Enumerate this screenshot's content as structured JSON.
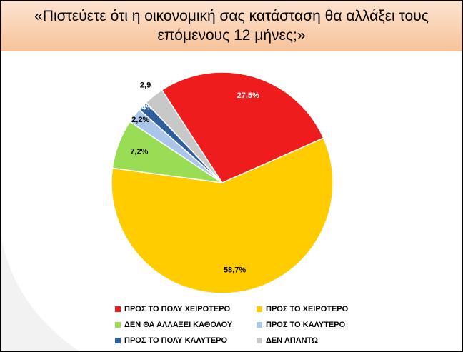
{
  "chart_data": {
    "type": "pie",
    "title": "«Πιστεύετε ότι η οικονομική σας κατάσταση θα αλλάξει τους επόμενους 12 μήνες;»",
    "categories": [
      "ΠΡΟΣ ΤΟ ΠΟΛΥ ΧΕΙΡΟΤΕΡΟ",
      "ΠΡΟΣ ΤΟ ΧΕΙΡΟΤΕΡΟ",
      "ΔΕΝ ΘΑ ΑΛΛΑΞΕΙ ΚΑΘΟΛΟΥ",
      "ΠΡΟΣ ΤΟ ΚΑΛΥΤΕΡΟ",
      "ΠΡΟΣ ΤΟ ΠΟΛΥ ΚΑΛΥΤΕΡΟ",
      "ΔΕΝ ΑΠΑΝΤΩ"
    ],
    "values": [
      27.5,
      58.7,
      7.2,
      2.2,
      1.4,
      2.9
    ],
    "value_labels": [
      "27,5%",
      "58,7%",
      "7,2%",
      "2,2%",
      "1,4%",
      "2,9"
    ],
    "colors": [
      "#ee1c1c",
      "#ffcc00",
      "#99dd55",
      "#a9c5ea",
      "#2e5e9e",
      "#c8c8c8"
    ]
  }
}
